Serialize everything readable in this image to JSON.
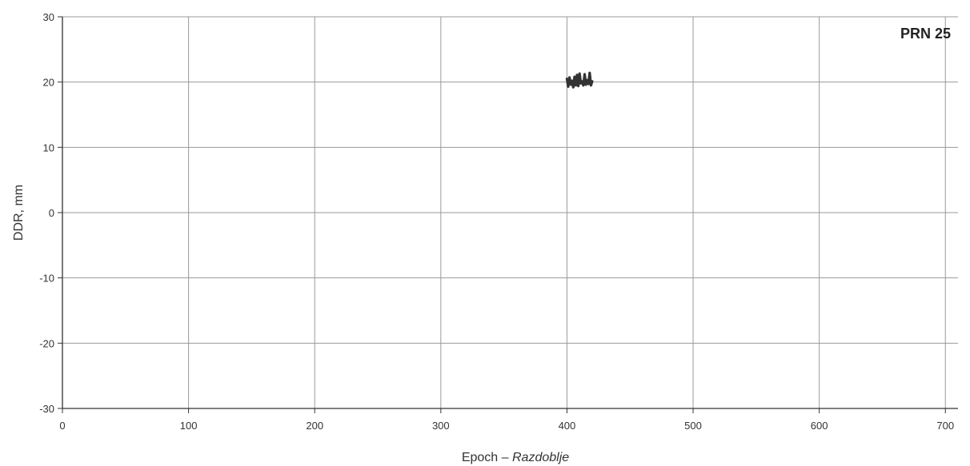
{
  "chart_data": {
    "type": "line",
    "annotation": "PRN 25",
    "xlabel": "Epoch",
    "xlabel_separator": " – ",
    "xlabel_italic": "Razdoblje",
    "ylabel": "DDR, mm",
    "xlim": [
      0,
      710
    ],
    "ylim": [
      -30,
      30
    ],
    "x_ticks": [
      0,
      100,
      200,
      300,
      400,
      500,
      600,
      700
    ],
    "y_ticks": [
      -30,
      -20,
      -10,
      0,
      10,
      20,
      30
    ],
    "grid": true,
    "series": [
      {
        "color": "#333333",
        "x": [
          400,
          401,
          402,
          403,
          404,
          405,
          406,
          407,
          408,
          409,
          410,
          411,
          412,
          413,
          414,
          415,
          416,
          417,
          418,
          419,
          420
        ],
        "y": [
          20.5,
          19.3,
          20.7,
          19.6,
          20.2,
          19.2,
          20.8,
          19.5,
          21.1,
          19.4,
          21.3,
          19.8,
          20.1,
          19.5,
          21.2,
          19.6,
          20.3,
          19.7,
          21.4,
          19.5,
          20.1
        ]
      }
    ]
  },
  "colors": {
    "axis": "#333333",
    "grid": "#9a9a9a",
    "line": "#333333"
  }
}
